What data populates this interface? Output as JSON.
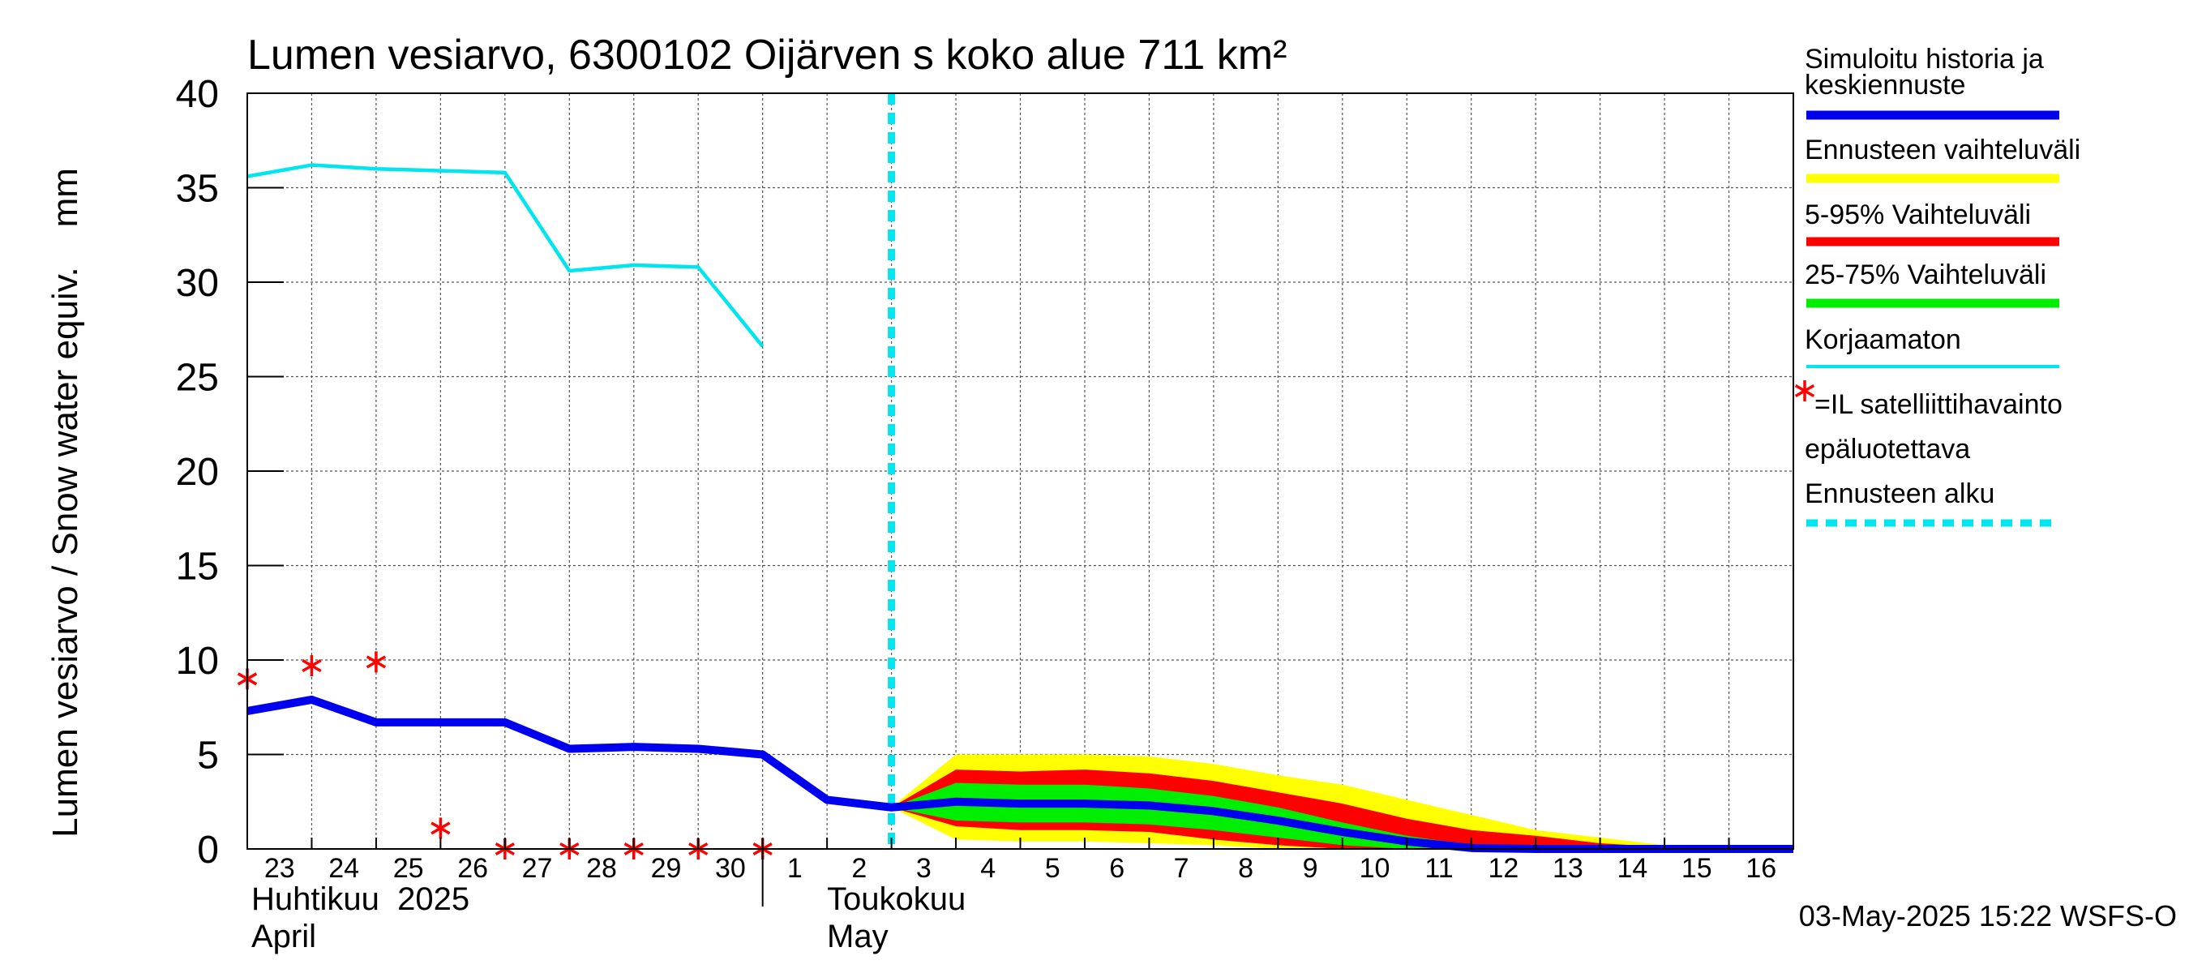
{
  "chart_data": {
    "type": "area",
    "title": "Lumen vesiarvo, 6300102 Oijärven s koko alue 711 km²",
    "ylabel": "Lumen vesiarvo / Snow water equiv.    mm",
    "ylim": [
      0,
      40
    ],
    "yticks": [
      0,
      5,
      10,
      15,
      20,
      25,
      30,
      35,
      40
    ],
    "x_day_range": [
      22.5,
      46.5
    ],
    "day_labels": [
      {
        "x": 23,
        "label": "23"
      },
      {
        "x": 24,
        "label": "24"
      },
      {
        "x": 25,
        "label": "25"
      },
      {
        "x": 26,
        "label": "26"
      },
      {
        "x": 27,
        "label": "27"
      },
      {
        "x": 28,
        "label": "28"
      },
      {
        "x": 29,
        "label": "29"
      },
      {
        "x": 30,
        "label": "30"
      },
      {
        "x": 31,
        "label": "1"
      },
      {
        "x": 32,
        "label": "2"
      },
      {
        "x": 33,
        "label": "3"
      },
      {
        "x": 34,
        "label": "4"
      },
      {
        "x": 35,
        "label": "5"
      },
      {
        "x": 36,
        "label": "6"
      },
      {
        "x": 37,
        "label": "7"
      },
      {
        "x": 38,
        "label": "8"
      },
      {
        "x": 39,
        "label": "9"
      },
      {
        "x": 40,
        "label": "10"
      },
      {
        "x": 41,
        "label": "11"
      },
      {
        "x": 42,
        "label": "12"
      },
      {
        "x": 43,
        "label": "13"
      },
      {
        "x": 44,
        "label": "14"
      },
      {
        "x": 45,
        "label": "15"
      },
      {
        "x": 46,
        "label": "16"
      }
    ],
    "month_labels": {
      "april_fi": "Huhtikuu  2025",
      "april_en": "April",
      "may_fi": "Toukokuu",
      "may_en": "May"
    },
    "month_divider_x": 30.5,
    "forecast_start_x": 32.5,
    "series": [
      {
        "name": "Korjaamaton",
        "color": "#00e5ee",
        "points": [
          [
            22.5,
            35.6
          ],
          [
            23.5,
            36.2
          ],
          [
            24.5,
            36.0
          ],
          [
            26.5,
            35.8
          ],
          [
            27.5,
            30.6
          ],
          [
            28.5,
            30.9
          ],
          [
            29.5,
            30.8
          ],
          [
            30.5,
            26.6
          ]
        ]
      },
      {
        "name": "Simuloitu historia ja keskiennuste",
        "color": "#0000ee",
        "points": [
          [
            22.5,
            7.3
          ],
          [
            23.5,
            7.9
          ],
          [
            24.5,
            6.7
          ],
          [
            26.5,
            6.7
          ],
          [
            27.5,
            5.3
          ],
          [
            28.5,
            5.4
          ],
          [
            29.5,
            5.3
          ],
          [
            30.5,
            5.0
          ],
          [
            31.5,
            2.6
          ],
          [
            32.5,
            2.2
          ],
          [
            33.5,
            2.5
          ],
          [
            34.5,
            2.4
          ],
          [
            35.5,
            2.4
          ],
          [
            36.5,
            2.3
          ],
          [
            37.5,
            2.0
          ],
          [
            38.5,
            1.5
          ],
          [
            39.5,
            0.9
          ],
          [
            40.5,
            0.4
          ],
          [
            41.5,
            0.05
          ],
          [
            42.5,
            0.0
          ],
          [
            46.5,
            0.0
          ]
        ]
      }
    ],
    "bands": [
      {
        "name": "Ennusteen vaihteluväli",
        "color": "#ffff00",
        "x": [
          32.5,
          33.5,
          34.5,
          35.5,
          36.5,
          37.5,
          38.5,
          39.5,
          40.5,
          41.5,
          42.5,
          43.5,
          44.5,
          45.5
        ],
        "upper": [
          2.2,
          5.0,
          5.0,
          5.0,
          4.9,
          4.5,
          3.9,
          3.4,
          2.6,
          1.8,
          1.0,
          0.6,
          0.2,
          0.0
        ],
        "lower": [
          2.2,
          0.5,
          0.4,
          0.4,
          0.3,
          0.2,
          0.0,
          0.0,
          0.0,
          0.0,
          0.0,
          0.0,
          0.0,
          0.0
        ]
      },
      {
        "name": "5-95% Vaihteluväli",
        "color": "#ff0000",
        "x": [
          32.5,
          33.5,
          34.5,
          35.5,
          36.5,
          37.5,
          38.5,
          39.5,
          40.5,
          41.5,
          42.5,
          43.5,
          44.5,
          45.5
        ],
        "upper": [
          2.2,
          4.2,
          4.1,
          4.2,
          4.0,
          3.6,
          3.0,
          2.4,
          1.6,
          1.0,
          0.7,
          0.3,
          0.1,
          0.0
        ],
        "lower": [
          2.2,
          1.2,
          1.0,
          1.0,
          0.9,
          0.5,
          0.2,
          0.0,
          0.0,
          0.0,
          0.0,
          0.0,
          0.0,
          0.0
        ]
      },
      {
        "name": "25-75% Vaihteluväli",
        "color": "#00ee00",
        "x": [
          32.5,
          33.5,
          34.5,
          35.5,
          36.5,
          37.5,
          38.5,
          39.5,
          40.5,
          41.5,
          42.5
        ],
        "upper": [
          2.2,
          3.5,
          3.4,
          3.4,
          3.2,
          2.8,
          2.2,
          1.4,
          0.7,
          0.2,
          0.0
        ],
        "lower": [
          2.2,
          1.5,
          1.4,
          1.4,
          1.3,
          1.0,
          0.6,
          0.2,
          0.0,
          0.0,
          0.0
        ]
      }
    ],
    "observations": {
      "name": "=IL satelliittihavainto epäluotettava",
      "color": "#ff0000",
      "points": [
        [
          22.5,
          9.0
        ],
        [
          23.5,
          9.7
        ],
        [
          24.5,
          9.9
        ],
        [
          25.5,
          1.1
        ],
        [
          26.5,
          0.0
        ],
        [
          27.5,
          0.0
        ],
        [
          28.5,
          0.0
        ],
        [
          29.5,
          0.0
        ],
        [
          30.5,
          0.0
        ]
      ]
    },
    "legend": {
      "placement": "right",
      "items": [
        {
          "label": "Simuloitu historia ja keskiennuste",
          "lines": [
            "Simuloitu historia ja",
            "keskiennuste"
          ],
          "color": "#0000ee",
          "kind": "line"
        },
        {
          "label": "Ennusteen vaihteluväli",
          "lines": [
            "Ennusteen vaihteluväli"
          ],
          "color": "#ffff00",
          "kind": "line"
        },
        {
          "label": "5-95% Vaihteluväli",
          "lines": [
            "5-95% Vaihteluväli"
          ],
          "color": "#ff0000",
          "kind": "line"
        },
        {
          "label": "25-75% Vaihteluväli",
          "lines": [
            "25-75% Vaihteluväli"
          ],
          "color": "#00ee00",
          "kind": "line"
        },
        {
          "label": "Korjaamaton",
          "lines": [
            "Korjaamaton"
          ],
          "color": "#00e5ee",
          "kind": "thin"
        },
        {
          "label": "=IL satelliittihavainto epäluotettava",
          "lines": [
            "=IL satelliittihavainto",
            "epäluotettava"
          ],
          "color": "#ff0000",
          "kind": "star"
        },
        {
          "label": "Ennusteen alku",
          "lines": [
            "Ennusteen alku"
          ],
          "color": "#00e5ee",
          "kind": "dashed"
        }
      ]
    },
    "timestamp": "03-May-2025 15:22 WSFS-O"
  }
}
